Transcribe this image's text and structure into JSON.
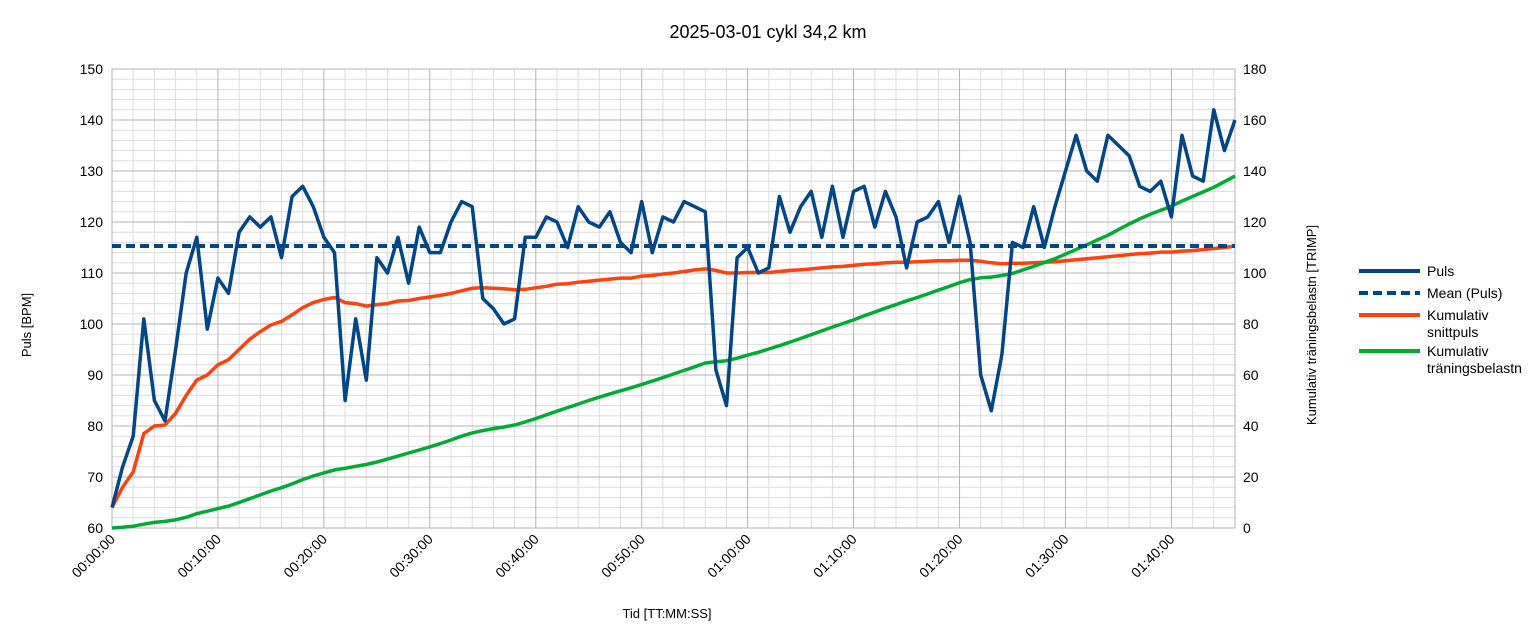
{
  "chart_data": {
    "type": "line",
    "title": "2025-03-01 cykl 34,2 km",
    "xlabel": "Tid [TT:MM:SS]",
    "ylabel": "Puls [BPM]",
    "y2label": "Kumulativ träningsbelastn [TRIMP]",
    "xlim": [
      0,
      106
    ],
    "ylim": [
      60,
      150
    ],
    "y2lim": [
      0,
      180
    ],
    "x_ticks": [
      "00:00:00",
      "00:10:00",
      "00:20:00",
      "00:30:00",
      "00:40:00",
      "00:50:00",
      "01:00:00",
      "01:10:00",
      "01:20:00",
      "01:30:00",
      "01:40:00"
    ],
    "y_ticks": [
      60,
      70,
      80,
      90,
      100,
      110,
      120,
      130,
      140,
      150
    ],
    "y2_ticks": [
      0,
      20,
      40,
      60,
      80,
      100,
      120,
      140,
      160,
      180
    ],
    "grid": true,
    "legend_position": "right",
    "x_minutes": [
      0,
      1,
      2,
      3,
      4,
      5,
      6,
      7,
      8,
      9,
      10,
      11,
      12,
      13,
      14,
      15,
      16,
      17,
      18,
      19,
      20,
      21,
      22,
      23,
      24,
      25,
      26,
      27,
      28,
      29,
      30,
      31,
      32,
      33,
      34,
      35,
      36,
      37,
      38,
      39,
      40,
      41,
      42,
      43,
      44,
      45,
      46,
      47,
      48,
      49,
      50,
      51,
      52,
      53,
      54,
      55,
      56,
      57,
      58,
      59,
      60,
      61,
      62,
      63,
      64,
      65,
      66,
      67,
      68,
      69,
      70,
      71,
      72,
      73,
      74,
      75,
      76,
      77,
      78,
      79,
      80,
      81,
      82,
      83,
      84,
      85,
      86,
      87,
      88,
      89,
      90,
      91,
      92,
      93,
      94,
      95,
      96,
      97,
      98,
      99,
      100,
      101,
      102,
      103,
      104,
      105,
      106
    ],
    "series": [
      {
        "name": "Puls",
        "axis": "left",
        "color": "#004586",
        "style": "solid",
        "values": [
          64,
          72,
          78,
          101,
          85,
          81,
          95,
          110,
          117,
          99,
          109,
          106,
          118,
          121,
          119,
          121,
          113,
          125,
          127,
          123,
          117,
          114,
          85,
          101,
          89,
          113,
          110,
          117,
          108,
          119,
          114,
          114,
          120,
          124,
          123,
          105,
          103,
          100,
          101,
          117,
          117,
          121,
          120,
          115,
          123,
          120,
          119,
          122,
          116,
          114,
          124,
          114,
          121,
          120,
          124,
          123,
          122,
          91,
          84,
          113,
          115,
          110,
          111,
          125,
          118,
          123,
          126,
          117,
          127,
          117,
          126,
          127,
          119,
          126,
          121,
          111,
          120,
          121,
          124,
          116,
          125,
          116,
          90,
          83,
          94,
          116,
          115,
          123,
          115,
          123,
          130,
          137,
          130,
          128,
          137,
          135,
          133,
          127,
          126,
          128,
          121,
          137,
          129,
          128,
          142,
          134,
          140
        ]
      },
      {
        "name": "Mean (Puls)",
        "axis": "left",
        "color": "#004586",
        "style": "dashed",
        "values": [
          115.3,
          115.3
        ]
      },
      {
        "name": "Kumulativ snittpuls",
        "axis": "left",
        "color": "#ff420e",
        "style": "solid",
        "values": [
          64,
          68,
          71,
          78.5,
          80,
          80.2,
          82.5,
          86,
          89,
          90,
          92,
          93,
          95,
          97,
          98.5,
          99.8,
          100.5,
          101.8,
          103.2,
          104.2,
          104.8,
          105.2,
          104.2,
          104,
          103.5,
          103.8,
          104,
          104.5,
          104.6,
          105,
          105.3,
          105.6,
          106,
          106.5,
          107,
          107.1,
          107,
          106.9,
          106.7,
          106.8,
          107.1,
          107.4,
          107.8,
          107.9,
          108.2,
          108.4,
          108.6,
          108.8,
          109,
          109,
          109.4,
          109.5,
          109.8,
          110,
          110.3,
          110.6,
          110.8,
          110.5,
          110,
          110,
          110.1,
          110.1,
          110.1,
          110.3,
          110.5,
          110.6,
          110.8,
          111,
          111.2,
          111.3,
          111.5,
          111.7,
          111.8,
          112,
          112.1,
          112.1,
          112.2,
          112.3,
          112.4,
          112.4,
          112.5,
          112.5,
          112.3,
          112,
          111.8,
          111.9,
          111.9,
          112,
          112.1,
          112.2,
          112.4,
          112.6,
          112.8,
          113,
          113.2,
          113.4,
          113.6,
          113.8,
          113.9,
          114.1,
          114.1,
          114.3,
          114.4,
          114.6,
          114.8,
          115,
          115.3
        ]
      },
      {
        "name": "Kumulativ träningsbelastn",
        "axis": "right",
        "color": "#00a933",
        "style": "solid",
        "values": [
          0,
          0.3,
          0.7,
          1.5,
          2.2,
          2.6,
          3.2,
          4.2,
          5.6,
          6.6,
          7.6,
          8.6,
          10,
          11.5,
          13,
          14.5,
          15.8,
          17.3,
          19,
          20.4,
          21.6,
          22.8,
          23.4,
          24.2,
          24.9,
          25.9,
          27,
          28.2,
          29.4,
          30.6,
          31.8,
          33.1,
          34.5,
          36,
          37.3,
          38.2,
          39,
          39.6,
          40.4,
          41.6,
          42.9,
          44.4,
          45.8,
          47.2,
          48.6,
          50,
          51.3,
          52.6,
          53.8,
          55,
          56.3,
          57.6,
          59,
          60.4,
          61.8,
          63.2,
          64.7,
          65.2,
          65.6,
          66.6,
          67.8,
          68.9,
          70.2,
          71.5,
          72.9,
          74.3,
          75.8,
          77.3,
          78.8,
          80.2,
          81.6,
          83.2,
          84.7,
          86.2,
          87.6,
          89.1,
          90.4,
          91.8,
          93.3,
          94.7,
          96.2,
          97.4,
          98.1,
          98.4,
          99,
          99.8,
          101.2,
          102.6,
          104.1,
          105.6,
          107.4,
          109.2,
          111,
          113,
          114.8,
          117,
          119.2,
          121.2,
          123,
          124.6,
          126.2,
          128.2,
          130,
          131.8,
          133.6,
          135.8,
          138
        ]
      }
    ]
  }
}
